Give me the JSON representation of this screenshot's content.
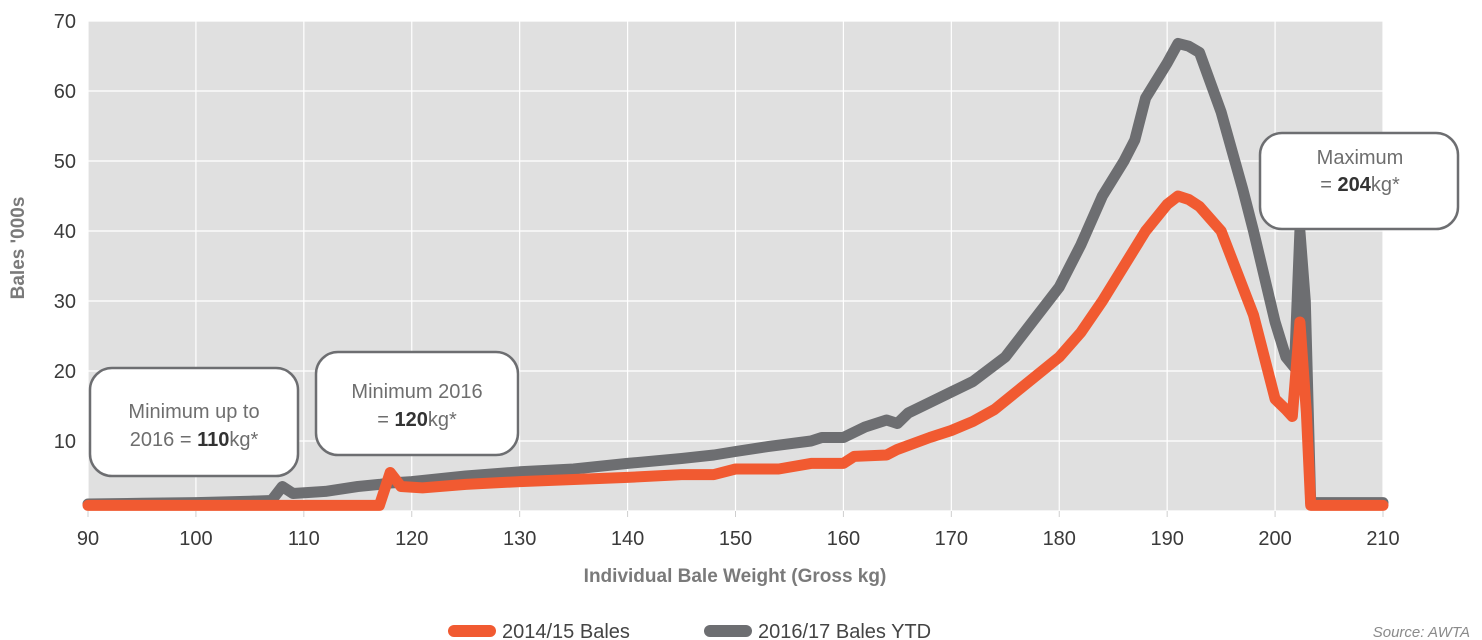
{
  "chart_data": {
    "type": "line",
    "xlabel": "Individual Bale Weight (Gross kg)",
    "ylabel": "Bales '000s",
    "xlim": [
      90,
      210
    ],
    "ylim": [
      0,
      70
    ],
    "x_ticks": [
      "90",
      "100",
      "110",
      "120",
      "130",
      "140",
      "150",
      "160",
      "170",
      "180",
      "190",
      "200",
      "210"
    ],
    "y_ticks": [
      "10",
      "20",
      "30",
      "40",
      "50",
      "60",
      "70"
    ],
    "grid": true,
    "legend_position": "bottom-center",
    "series": [
      {
        "name": "2016/17 Bales YTD",
        "color": "#6d6e71",
        "points": [
          [
            90,
            1
          ],
          [
            95,
            1.1
          ],
          [
            100,
            1.2
          ],
          [
            105,
            1.4
          ],
          [
            107,
            1.5
          ],
          [
            108,
            3.5
          ],
          [
            109,
            2.5
          ],
          [
            112,
            2.8
          ],
          [
            115,
            3.5
          ],
          [
            117,
            3.8
          ],
          [
            118,
            4
          ],
          [
            120,
            4.2
          ],
          [
            125,
            5
          ],
          [
            130,
            5.6
          ],
          [
            135,
            6
          ],
          [
            140,
            6.8
          ],
          [
            145,
            7.5
          ],
          [
            148,
            8
          ],
          [
            150,
            8.5
          ],
          [
            153,
            9.2
          ],
          [
            157,
            10
          ],
          [
            158,
            10.5
          ],
          [
            160,
            10.5
          ],
          [
            162,
            12
          ],
          [
            164,
            13
          ],
          [
            165,
            12.5
          ],
          [
            166,
            14
          ],
          [
            168,
            15.5
          ],
          [
            170,
            17
          ],
          [
            172,
            18.5
          ],
          [
            175,
            22
          ],
          [
            178,
            28
          ],
          [
            180,
            32
          ],
          [
            182,
            38
          ],
          [
            184,
            45
          ],
          [
            186,
            50
          ],
          [
            187,
            53
          ],
          [
            188,
            59
          ],
          [
            190,
            64
          ],
          [
            191,
            66.8
          ],
          [
            192,
            66.4
          ],
          [
            193,
            65.5
          ],
          [
            195,
            57
          ],
          [
            197,
            46
          ],
          [
            198,
            40
          ],
          [
            200,
            27
          ],
          [
            201,
            22
          ],
          [
            201.8,
            20.5
          ],
          [
            202.3,
            40
          ],
          [
            202.8,
            30
          ],
          [
            203.3,
            1.2
          ],
          [
            205,
            1.2
          ],
          [
            210,
            1.2
          ]
        ]
      },
      {
        "name": "2014/15 Bales",
        "color": "#f15a31",
        "points": [
          [
            90,
            0.8
          ],
          [
            100,
            0.8
          ],
          [
            110,
            0.8
          ],
          [
            117,
            0.8
          ],
          [
            118,
            5.5
          ],
          [
            119,
            3.5
          ],
          [
            121,
            3.3
          ],
          [
            125,
            3.8
          ],
          [
            130,
            4.2
          ],
          [
            140,
            4.8
          ],
          [
            145,
            5.2
          ],
          [
            148,
            5.2
          ],
          [
            150,
            6
          ],
          [
            154,
            6
          ],
          [
            157,
            6.8
          ],
          [
            160,
            6.8
          ],
          [
            161,
            7.8
          ],
          [
            164,
            8
          ],
          [
            165,
            8.8
          ],
          [
            168,
            10.5
          ],
          [
            170,
            11.5
          ],
          [
            172,
            12.8
          ],
          [
            174,
            14.5
          ],
          [
            176,
            17
          ],
          [
            178,
            19.5
          ],
          [
            180,
            22
          ],
          [
            182,
            25.5
          ],
          [
            184,
            30
          ],
          [
            186,
            35
          ],
          [
            187,
            37.5
          ],
          [
            188,
            40
          ],
          [
            190,
            43.8
          ],
          [
            191,
            45
          ],
          [
            192,
            44.5
          ],
          [
            193,
            43.5
          ],
          [
            195,
            40
          ],
          [
            196,
            36
          ],
          [
            198,
            28
          ],
          [
            199,
            22
          ],
          [
            200,
            16
          ],
          [
            201,
            14.5
          ],
          [
            201.6,
            13.5
          ],
          [
            202.3,
            27
          ],
          [
            202.9,
            14
          ],
          [
            203.3,
            0.8
          ],
          [
            205,
            0.8
          ],
          [
            210,
            0.8
          ]
        ]
      }
    ],
    "annotations": [
      {
        "line1": "Minimum up to",
        "line2_prefix": "2016 = ",
        "line2_bold": "110",
        "line2_suffix": "kg*"
      },
      {
        "line1": "Minimum 2016",
        "line2_prefix": "= ",
        "line2_bold": "120",
        "line2_suffix": "kg*"
      },
      {
        "line1": "Maximum",
        "line2_prefix": "= ",
        "line2_bold": "204",
        "line2_suffix": "kg*"
      }
    ],
    "legend": [
      {
        "label": "2014/15 Bales",
        "color": "#f15a31"
      },
      {
        "label": "2016/17 Bales YTD",
        "color": "#6d6e71"
      }
    ],
    "source": "Source: AWTA"
  }
}
